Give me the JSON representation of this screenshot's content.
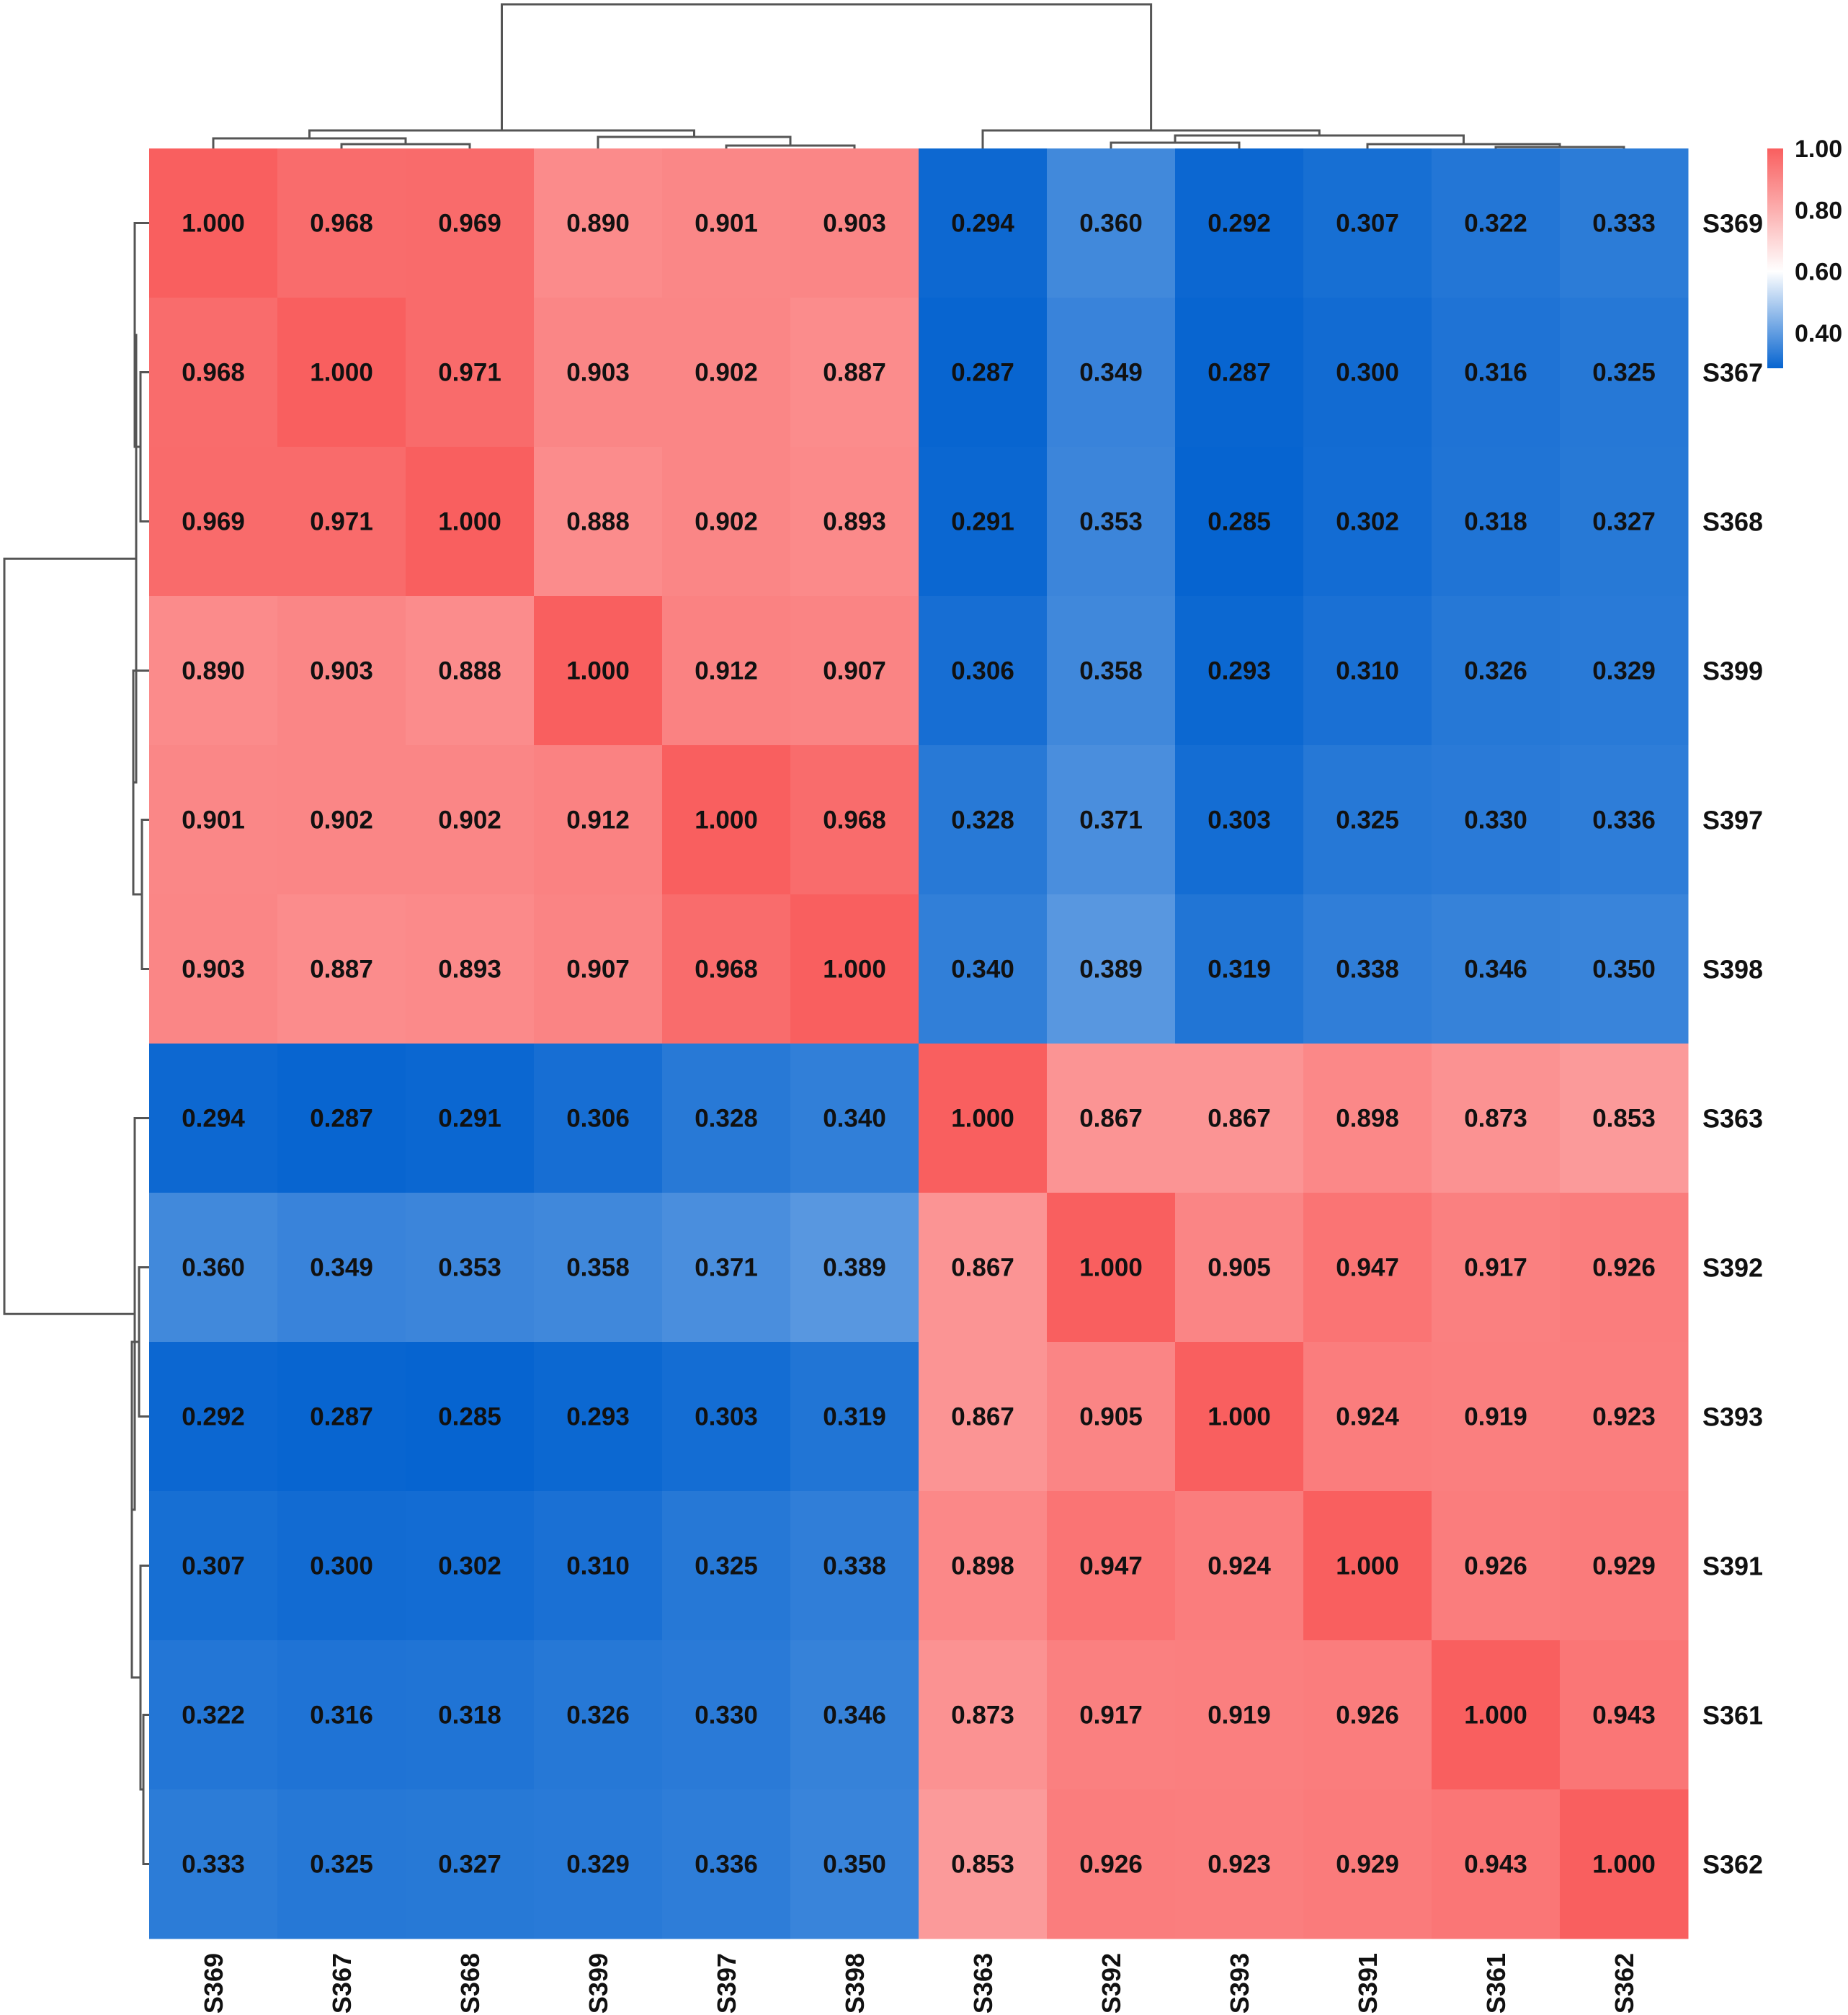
{
  "chart_data": {
    "type": "heatmap",
    "title": "",
    "xlabel": "",
    "ylabel": "",
    "row_labels": [
      "S369",
      "S367",
      "S368",
      "S399",
      "S397",
      "S398",
      "S363",
      "S392",
      "S393",
      "S391",
      "S361",
      "S362"
    ],
    "col_labels": [
      "S369",
      "S367",
      "S368",
      "S399",
      "S397",
      "S398",
      "S363",
      "S392",
      "S393",
      "S391",
      "S361",
      "S362"
    ],
    "values": [
      [
        1.0,
        0.968,
        0.969,
        0.89,
        0.901,
        0.903,
        0.294,
        0.36,
        0.292,
        0.307,
        0.322,
        0.333
      ],
      [
        0.968,
        1.0,
        0.971,
        0.903,
        0.902,
        0.887,
        0.287,
        0.349,
        0.287,
        0.3,
        0.316,
        0.325
      ],
      [
        0.969,
        0.971,
        1.0,
        0.888,
        0.902,
        0.893,
        0.291,
        0.353,
        0.285,
        0.302,
        0.318,
        0.327
      ],
      [
        0.89,
        0.903,
        0.888,
        1.0,
        0.912,
        0.907,
        0.306,
        0.358,
        0.293,
        0.31,
        0.326,
        0.329
      ],
      [
        0.901,
        0.902,
        0.902,
        0.912,
        1.0,
        0.968,
        0.328,
        0.371,
        0.303,
        0.325,
        0.33,
        0.336
      ],
      [
        0.903,
        0.887,
        0.893,
        0.907,
        0.968,
        1.0,
        0.34,
        0.389,
        0.319,
        0.338,
        0.346,
        0.35
      ],
      [
        0.294,
        0.287,
        0.291,
        0.306,
        0.328,
        0.34,
        1.0,
        0.867,
        0.867,
        0.898,
        0.873,
        0.853
      ],
      [
        0.36,
        0.349,
        0.353,
        0.358,
        0.371,
        0.389,
        0.867,
        1.0,
        0.905,
        0.947,
        0.917,
        0.926
      ],
      [
        0.292,
        0.287,
        0.285,
        0.293,
        0.303,
        0.319,
        0.867,
        0.905,
        1.0,
        0.924,
        0.919,
        0.923
      ],
      [
        0.307,
        0.3,
        0.302,
        0.31,
        0.325,
        0.338,
        0.898,
        0.947,
        0.924,
        1.0,
        0.926,
        0.929
      ],
      [
        0.322,
        0.316,
        0.318,
        0.326,
        0.33,
        0.346,
        0.873,
        0.917,
        0.919,
        0.926,
        1.0,
        0.943
      ],
      [
        0.333,
        0.325,
        0.327,
        0.329,
        0.336,
        0.35,
        0.853,
        0.926,
        0.923,
        0.929,
        0.943,
        1.0
      ]
    ],
    "value_labels": [
      [
        "1.000",
        "0.968",
        "0.969",
        "0.890",
        "0.901",
        "0.903",
        "0.294",
        "0.360",
        "0.292",
        "0.307",
        "0.322",
        "0.333"
      ],
      [
        "0.968",
        "1.000",
        "0.971",
        "0.903",
        "0.902",
        "0.887",
        "0.287",
        "0.349",
        "0.287",
        "0.300",
        "0.316",
        "0.325"
      ],
      [
        "0.969",
        "0.971",
        "1.000",
        "0.888",
        "0.902",
        "0.893",
        "0.291",
        "0.353",
        "0.285",
        "0.302",
        "0.318",
        "0.327"
      ],
      [
        "0.890",
        "0.903",
        "0.888",
        "1.000",
        "0.912",
        "0.907",
        "0.306",
        "0.358",
        "0.293",
        "0.310",
        "0.326",
        "0.329"
      ],
      [
        "0.901",
        "0.902",
        "0.902",
        "0.912",
        "1.000",
        "0.968",
        "0.328",
        "0.371",
        "0.303",
        "0.325",
        "0.330",
        "0.336"
      ],
      [
        "0.903",
        "0.887",
        "0.893",
        "0.907",
        "0.968",
        "1.000",
        "0.340",
        "0.389",
        "0.319",
        "0.338",
        "0.346",
        "0.350"
      ],
      [
        "0.294",
        "0.287",
        "0.291",
        "0.306",
        "0.328",
        "0.340",
        "1.000",
        "0.867",
        "0.867",
        "0.898",
        "0.873",
        "0.853"
      ],
      [
        "0.360",
        "0.349",
        "0.353",
        "0.358",
        "0.371",
        "0.389",
        "0.867",
        "1.000",
        "0.905",
        "0.947",
        "0.917",
        "0.926"
      ],
      [
        "0.292",
        "0.287",
        "0.285",
        "0.293",
        "0.303",
        "0.319",
        "0.867",
        "0.905",
        "1.000",
        "0.924",
        "0.919",
        "0.923"
      ],
      [
        "0.307",
        "0.300",
        "0.302",
        "0.310",
        "0.325",
        "0.338",
        "0.898",
        "0.947",
        "0.924",
        "1.000",
        "0.926",
        "0.929"
      ],
      [
        "0.322",
        "0.316",
        "0.318",
        "0.326",
        "0.330",
        "0.346",
        "0.873",
        "0.917",
        "0.919",
        "0.926",
        "1.000",
        "0.943"
      ],
      [
        "0.333",
        "0.325",
        "0.327",
        "0.329",
        "0.336",
        "0.350",
        "0.853",
        "0.926",
        "0.923",
        "0.929",
        "0.943",
        "1.000"
      ]
    ],
    "colorbar": {
      "ticks": [
        1.0,
        0.8,
        0.6,
        0.4
      ],
      "tick_labels": [
        "1.00",
        "0.80",
        "0.60",
        "0.40"
      ],
      "range": [
        0.285,
        1.0
      ],
      "midpoint": 0.6,
      "low_color": "#0664d0",
      "mid_color": "#ffffff",
      "high_color": "#f95f5f"
    },
    "row_dendrogram": true,
    "col_dendrogram": true,
    "legend_position": "top-right",
    "grid": false
  }
}
